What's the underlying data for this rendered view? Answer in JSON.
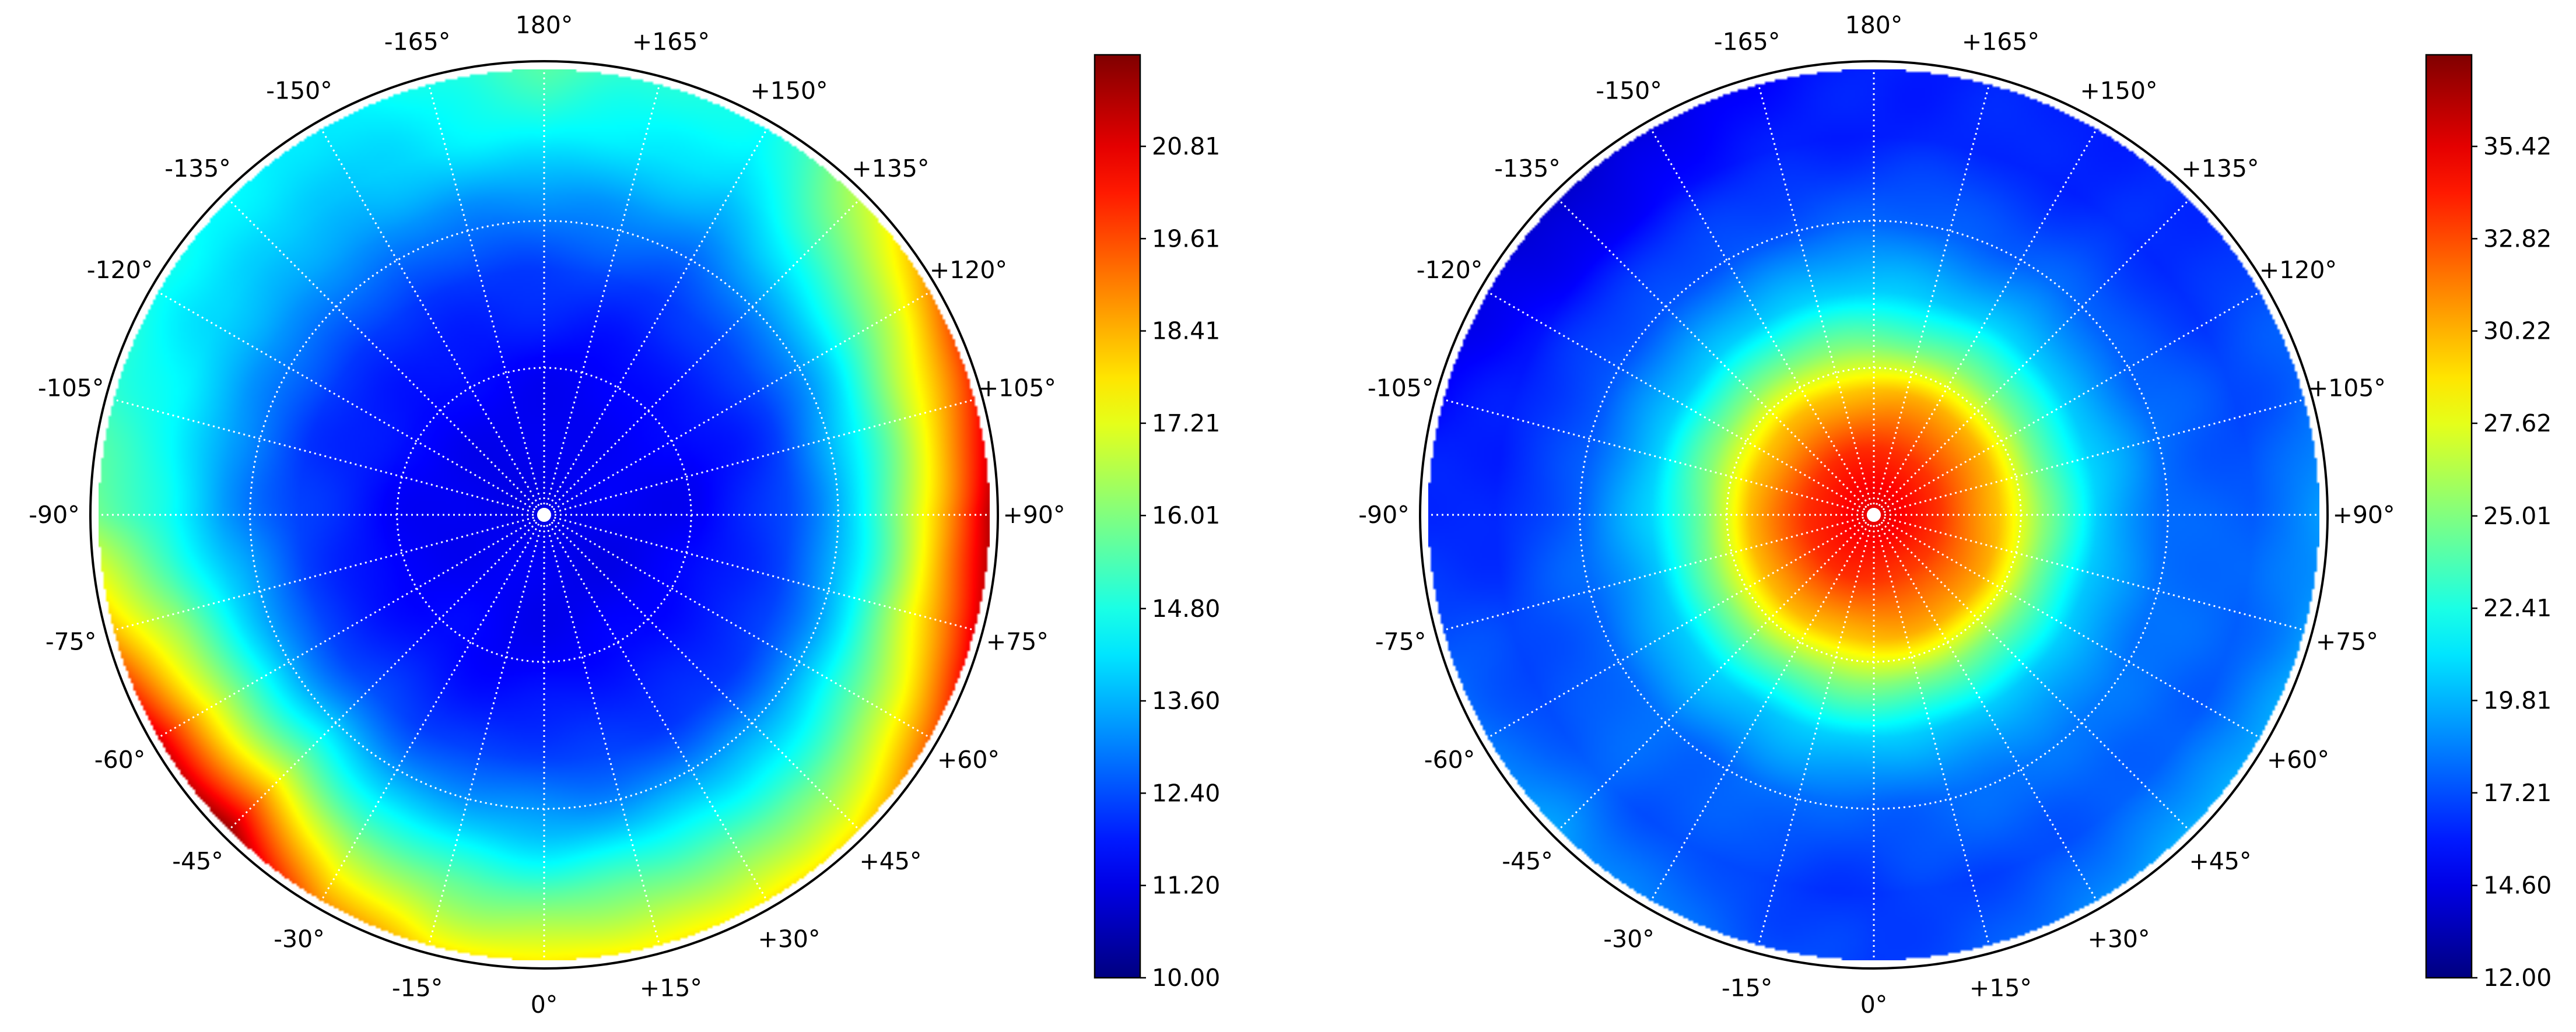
{
  "chart_data": [
    {
      "type": "heatmap",
      "projection": "polar",
      "colormap": "jet",
      "grid": true,
      "angular_tick_labels": [
        "180°",
        "+165°",
        "+150°",
        "+135°",
        "+120°",
        "+105°",
        "+90°",
        "+75°",
        "+60°",
        "+45°",
        "+30°",
        "+15°",
        "0°",
        "-15°",
        "-30°",
        "-45°",
        "-60°",
        "-75°",
        "-90°",
        "-105°",
        "-120°",
        "-135°",
        "-150°",
        "-165°"
      ],
      "colorbar": {
        "range": [
          10.0,
          22.0
        ],
        "ticks": [
          "10.00",
          "11.20",
          "12.40",
          "13.60",
          "14.80",
          "16.01",
          "17.21",
          "18.41",
          "19.61",
          "20.81"
        ]
      },
      "field": {
        "center_value": 11.2,
        "radial_profile": [
          [
            0.0,
            11.2
          ],
          [
            0.35,
            11.5
          ],
          [
            0.55,
            12.2
          ],
          [
            0.72,
            13.4
          ],
          [
            0.85,
            14.6
          ],
          [
            1.0,
            15.6
          ]
        ],
        "edge_by_angle_deg": [
          [
            0,
            17.6
          ],
          [
            45,
            17.8
          ],
          [
            75,
            20.9
          ],
          [
            90,
            21.3
          ],
          [
            105,
            20.2
          ],
          [
            120,
            18.8
          ],
          [
            150,
            14.5
          ],
          [
            180,
            15.4
          ],
          [
            -150,
            14.2
          ],
          [
            -120,
            14.6
          ],
          [
            -90,
            15.8
          ],
          [
            -75,
            18.4
          ],
          [
            -60,
            20.8
          ],
          [
            -45,
            21.6
          ],
          [
            -30,
            18.8
          ],
          [
            -15,
            17.8
          ]
        ]
      }
    },
    {
      "type": "heatmap",
      "projection": "polar",
      "colormap": "jet",
      "grid": true,
      "angular_tick_labels": [
        "180°",
        "+165°",
        "+150°",
        "+135°",
        "+120°",
        "+105°",
        "+90°",
        "+75°",
        "+60°",
        "+45°",
        "+30°",
        "+15°",
        "0°",
        "-15°",
        "-30°",
        "-45°",
        "-60°",
        "-75°",
        "-90°",
        "-105°",
        "-120°",
        "-135°",
        "-150°",
        "-165°"
      ],
      "colorbar": {
        "range": [
          12.0,
          38.0
        ],
        "ticks": [
          "12.00",
          "14.60",
          "17.21",
          "19.81",
          "22.41",
          "25.01",
          "27.62",
          "30.22",
          "32.82",
          "35.42"
        ]
      },
      "field": {
        "center_value": 35.5,
        "radial_profile": [
          [
            0.0,
            35.5
          ],
          [
            0.15,
            33.5
          ],
          [
            0.28,
            30.0
          ],
          [
            0.38,
            25.0
          ],
          [
            0.5,
            20.5
          ],
          [
            0.65,
            18.0
          ],
          [
            0.85,
            17.0
          ],
          [
            1.0,
            17.8
          ]
        ],
        "edge_by_angle_deg": [
          [
            0,
            16.6
          ],
          [
            45,
            19.6
          ],
          [
            90,
            19.0
          ],
          [
            135,
            16.2
          ],
          [
            180,
            16.0
          ],
          [
            -135,
            14.0
          ],
          [
            -90,
            16.2
          ],
          [
            -45,
            19.2
          ]
        ]
      }
    }
  ]
}
